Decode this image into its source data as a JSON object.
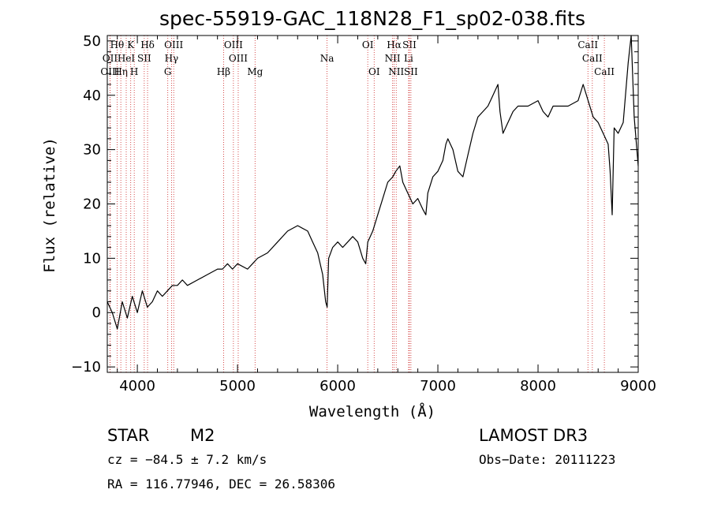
{
  "chart_data": {
    "type": "line",
    "title": "spec-55919-GAC_118N28_F1_sp02-038.fits",
    "xlabel": "Wavelength (Å)",
    "ylabel": "Flux (relative)",
    "xlim": [
      3700,
      9000
    ],
    "ylim": [
      -11,
      51
    ],
    "xticks": [
      4000,
      5000,
      6000,
      7000,
      8000,
      9000
    ],
    "yticks": [
      -10,
      0,
      10,
      20,
      30,
      40,
      50
    ],
    "xtick_labels": [
      "4000",
      "5000",
      "6000",
      "7000",
      "8000",
      "9000"
    ],
    "ytick_labels": [
      "−10",
      "0",
      "10",
      "20",
      "30",
      "40",
      "50"
    ],
    "series": [
      {
        "name": "flux",
        "x": [
          3700,
          3750,
          3800,
          3850,
          3900,
          3950,
          4000,
          4050,
          4100,
          4150,
          4200,
          4250,
          4300,
          4350,
          4400,
          4450,
          4500,
          4600,
          4700,
          4800,
          4850,
          4900,
          4950,
          5000,
          5100,
          5150,
          5200,
          5300,
          5400,
          5500,
          5600,
          5700,
          5750,
          5800,
          5850,
          5880,
          5895,
          5910,
          5950,
          6000,
          6050,
          6100,
          6150,
          6200,
          6250,
          6280,
          6300,
          6350,
          6400,
          6450,
          6500,
          6550,
          6580,
          6620,
          6650,
          6700,
          6750,
          6800,
          6850,
          6880,
          6900,
          6950,
          7000,
          7050,
          7080,
          7100,
          7150,
          7200,
          7250,
          7300,
          7350,
          7400,
          7450,
          7500,
          7550,
          7600,
          7620,
          7650,
          7700,
          7750,
          7800,
          7900,
          8000,
          8050,
          8100,
          8150,
          8200,
          8300,
          8400,
          8450,
          8500,
          8550,
          8600,
          8650,
          8700,
          8720,
          8740,
          8760,
          8800,
          8850,
          8900,
          8930,
          8960,
          9000
        ],
        "values": [
          2,
          0,
          -3,
          2,
          -1,
          3,
          0,
          4,
          1,
          2,
          4,
          3,
          4,
          5,
          5,
          6,
          5,
          6,
          7,
          8,
          8,
          9,
          8,
          9,
          8,
          9,
          10,
          11,
          13,
          15,
          16,
          15,
          13,
          11,
          7,
          2,
          1,
          10,
          12,
          13,
          12,
          13,
          14,
          13,
          10,
          9,
          13,
          15,
          18,
          21,
          24,
          25,
          26,
          27,
          24,
          22,
          20,
          21,
          19,
          18,
          22,
          25,
          26,
          28,
          31,
          32,
          30,
          26,
          25,
          29,
          33,
          36,
          37,
          38,
          40,
          42,
          37,
          33,
          35,
          37,
          38,
          38,
          39,
          37,
          36,
          38,
          38,
          38,
          39,
          42,
          39,
          36,
          35,
          33,
          31,
          26,
          18,
          34,
          33,
          35,
          46,
          51,
          36,
          27
        ]
      }
    ],
    "spectral_lines": [
      {
        "label": "Hθ",
        "wavelength": 3798,
        "row": 0
      },
      {
        "label": "OII",
        "wavelength": 3727,
        "row": 1
      },
      {
        "label": "OIII",
        "wavelength": 3727,
        "row": 2
      },
      {
        "label": "Hη",
        "wavelength": 3835,
        "row": 2
      },
      {
        "label": "K",
        "wavelength": 3934,
        "row": 0
      },
      {
        "label": "HeI",
        "wavelength": 3889,
        "row": 1
      },
      {
        "label": "SII",
        "wavelength": 4069,
        "row": 1
      },
      {
        "label": "H",
        "wavelength": 3969,
        "row": 2
      },
      {
        "label": "Hδ",
        "wavelength": 4102,
        "row": 0
      },
      {
        "label": "OIII",
        "wavelength": 4363,
        "row": 0
      },
      {
        "label": "Hγ",
        "wavelength": 4341,
        "row": 1
      },
      {
        "label": "G",
        "wavelength": 4304,
        "row": 2
      },
      {
        "label": "OIII",
        "wavelength": 4959,
        "row": 0
      },
      {
        "label": "OIII",
        "wavelength": 5007,
        "row": 1
      },
      {
        "label": "Hβ",
        "wavelength": 4861,
        "row": 2
      },
      {
        "label": "Mg",
        "wavelength": 5175,
        "row": 2
      },
      {
        "label": "Na",
        "wavelength": 5894,
        "row": 1
      },
      {
        "label": "OI",
        "wavelength": 6300,
        "row": 0
      },
      {
        "label": "OI",
        "wavelength": 6364,
        "row": 2
      },
      {
        "label": "Hα",
        "wavelength": 6563,
        "row": 0
      },
      {
        "label": "SII",
        "wavelength": 6716,
        "row": 0
      },
      {
        "label": "NII",
        "wavelength": 6548,
        "row": 1
      },
      {
        "label": "Li",
        "wavelength": 6708,
        "row": 1
      },
      {
        "label": "NII",
        "wavelength": 6584,
        "row": 2
      },
      {
        "label": "SII",
        "wavelength": 6731,
        "row": 2
      },
      {
        "label": "CaII",
        "wavelength": 8498,
        "row": 0
      },
      {
        "label": "CaII",
        "wavelength": 8542,
        "row": 1
      },
      {
        "label": "CaII",
        "wavelength": 8662,
        "row": 2
      }
    ]
  },
  "info": {
    "class": "STAR",
    "subclass": "M2",
    "survey": "LAMOST DR3",
    "cz": "cz = −84.5 ± 7.2 km/s",
    "obs_date": "Obs−Date: 20111223",
    "coords": "RA = 116.77946, DEC =  26.58306"
  }
}
